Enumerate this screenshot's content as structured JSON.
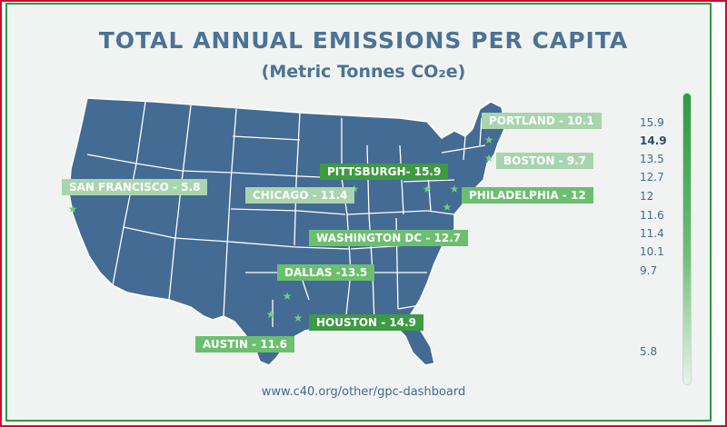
{
  "title": "TOTAL ANNUAL EMISSIONS PER CAPITA",
  "subtitle": "(Metric Tonnes CO₂e)",
  "source": "www.c40.org/other/gpc-dashboard",
  "colors": {
    "map": "#446b93",
    "state_border": "#ffffff",
    "accent": "#2e9a3e",
    "title": "#4a7396"
  },
  "scale": {
    "ticks": [
      "15.9",
      "14.9",
      "13.5",
      "12.7",
      "12",
      "11.6",
      "11.4",
      "10.1",
      "9.7",
      "5.8"
    ],
    "highlighted": "14.9"
  },
  "cities": [
    {
      "label": "PORTLAND - 10.1",
      "value": 10.1
    },
    {
      "label": "BOSTON - 9.7",
      "value": 9.7
    },
    {
      "label": "PITTSBURGH- 15.9",
      "value": 15.9
    },
    {
      "label": "PHILADELPHIA - 12",
      "value": 12
    },
    {
      "label": "CHICAGO - 11.4",
      "value": 11.4
    },
    {
      "label": "SAN FRANCISCO - 5.8",
      "value": 5.8
    },
    {
      "label": "WASHINGTON DC - 12.7",
      "value": 12.7
    },
    {
      "label": "DALLAS -13.5",
      "value": 13.5
    },
    {
      "label": "HOUSTON - 14.9",
      "value": 14.9
    },
    {
      "label": "AUSTIN - 11.6",
      "value": 11.6
    }
  ]
}
